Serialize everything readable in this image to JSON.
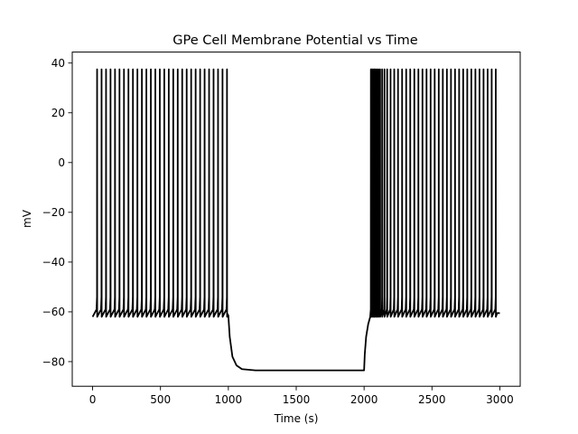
{
  "chart_data": {
    "type": "line",
    "title": "GPe Cell Membrane Potential vs Time",
    "xlabel": "Time (s)",
    "ylabel": "mV",
    "xlim": [
      -150,
      3150
    ],
    "ylim": [
      -89.9,
      44.4
    ],
    "x_ticks": [
      0,
      500,
      1000,
      1500,
      2000,
      2500,
      3000
    ],
    "x_tick_labels": [
      "0",
      "500",
      "1000",
      "1500",
      "2000",
      "2500",
      "3000"
    ],
    "y_ticks": [
      -80,
      -60,
      -40,
      -20,
      0,
      20,
      40
    ],
    "y_tick_labels": [
      "−80",
      "−60",
      "−40",
      "−20",
      "0",
      "20",
      "40"
    ],
    "grid": false,
    "series": [
      {
        "color": "#000000",
        "line_width": 1.8,
        "resting_mV": -62,
        "spike_trough_mV": -62,
        "spike_peak_mV": 37.5,
        "spike_times": [
          33,
          66,
          99,
          132,
          165,
          198,
          231,
          264,
          297,
          330,
          363,
          396,
          429,
          462,
          495,
          528,
          561,
          594,
          627,
          660,
          693,
          726,
          759,
          792,
          825,
          858,
          891,
          924,
          957,
          990,
          2050,
          2058,
          2066,
          2075,
          2084,
          2095,
          2106,
          2118,
          2133,
          2150,
          2170,
          2195,
          2222,
          2250,
          2280,
          2310,
          2340,
          2370,
          2400,
          2430,
          2460,
          2490,
          2520,
          2550,
          2580,
          2610,
          2640,
          2670,
          2700,
          2730,
          2760,
          2790,
          2820,
          2850,
          2880,
          2910,
          2940,
          2970
        ],
        "hyperpolarized_segment": [
          {
            "x": 1000,
            "y": -61.5
          },
          {
            "x": 1010,
            "y": -70
          },
          {
            "x": 1030,
            "y": -78
          },
          {
            "x": 1060,
            "y": -81.5
          },
          {
            "x": 1100,
            "y": -83
          },
          {
            "x": 1200,
            "y": -83.5
          },
          {
            "x": 2000,
            "y": -83.5
          },
          {
            "x": 2005,
            "y": -77
          },
          {
            "x": 2015,
            "y": -70
          },
          {
            "x": 2030,
            "y": -65
          },
          {
            "x": 2045,
            "y": -62
          }
        ],
        "trace_end": {
          "x": 3000,
          "y": -60.5
        }
      }
    ]
  }
}
